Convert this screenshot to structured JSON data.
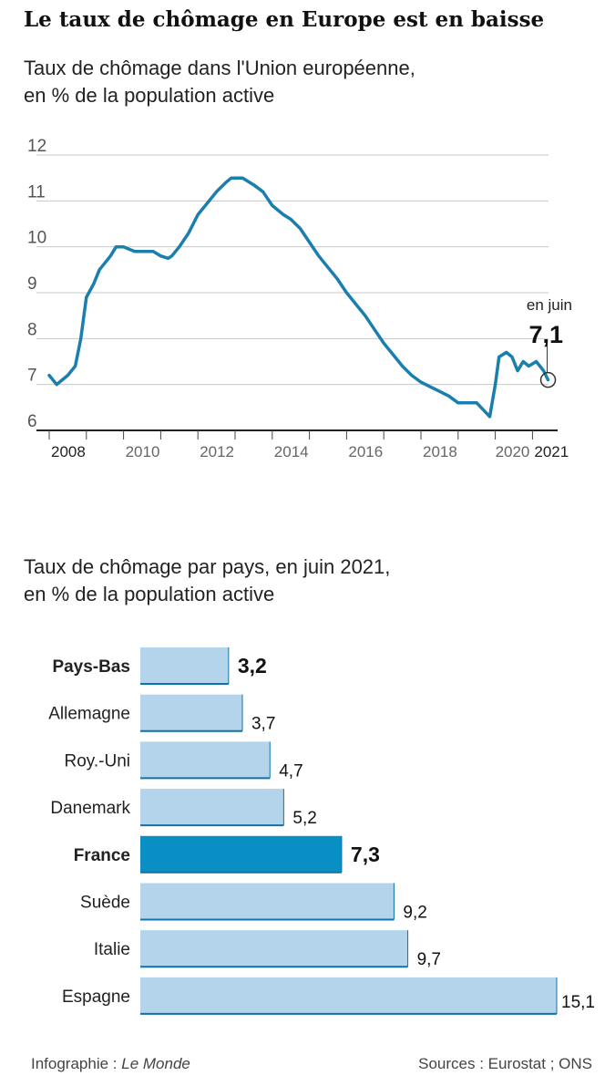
{
  "title": "Le taux de chômage en Europe est en baisse",
  "credit_label": "Infographie : ",
  "credit_name": "Le Monde",
  "sources": "Sources : Eurostat ; ONS",
  "colors": {
    "line": "#1a7fae",
    "bar": "#b3d4ea",
    "bar_highlight": "#0a8fc4",
    "bar_edge": "#0e73a6",
    "grid": "#c7c7c7"
  },
  "chart_data": [
    {
      "type": "line",
      "title": "Taux de chômage dans l'Union européenne,",
      "subtitle": "en % de la population active",
      "xlabel": "",
      "ylabel": "",
      "xlim": [
        2007.95,
        2021.5
      ],
      "ylim": [
        6,
        12
      ],
      "yticks": [
        "6",
        "7",
        "8",
        "9",
        "10",
        "11",
        "12"
      ],
      "xticks": [
        "2008",
        "2010",
        "2012",
        "2014",
        "2016",
        "2018",
        "2020",
        "2021"
      ],
      "annotation": {
        "label": "en juin",
        "value": "7,1",
        "x": 2021.42,
        "y": 7.1
      },
      "x": [
        2008.0,
        2008.2,
        2008.35,
        2008.5,
        2008.7,
        2008.85,
        2009.0,
        2009.2,
        2009.35,
        2009.5,
        2009.65,
        2009.8,
        2010.0,
        2010.3,
        2010.5,
        2010.8,
        2011.0,
        2011.2,
        2011.3,
        2011.5,
        2011.75,
        2012.0,
        2012.2,
        2012.5,
        2012.75,
        2012.9,
        2013.2,
        2013.5,
        2013.75,
        2014.0,
        2014.3,
        2014.5,
        2014.75,
        2015.0,
        2015.25,
        2015.5,
        2015.75,
        2016.0,
        2016.25,
        2016.5,
        2016.75,
        2017.0,
        2017.25,
        2017.5,
        2017.75,
        2018.0,
        2018.25,
        2018.5,
        2018.75,
        2019.0,
        2019.25,
        2019.5,
        2019.85,
        2020.0,
        2020.1,
        2020.3,
        2020.45,
        2020.6,
        2020.75,
        2020.9,
        2021.1,
        2021.2,
        2021.3,
        2021.42
      ],
      "values": [
        7.2,
        7.0,
        7.1,
        7.2,
        7.4,
        8.0,
        8.9,
        9.2,
        9.5,
        9.65,
        9.8,
        10.0,
        10.0,
        9.9,
        9.9,
        9.9,
        9.8,
        9.75,
        9.8,
        10.0,
        10.3,
        10.7,
        10.9,
        11.2,
        11.4,
        11.5,
        11.5,
        11.35,
        11.2,
        10.9,
        10.7,
        10.6,
        10.4,
        10.1,
        9.8,
        9.55,
        9.3,
        9.0,
        8.75,
        8.5,
        8.2,
        7.9,
        7.65,
        7.4,
        7.2,
        7.05,
        6.95,
        6.85,
        6.75,
        6.6,
        6.6,
        6.6,
        6.3,
        7.0,
        7.6,
        7.7,
        7.6,
        7.3,
        7.5,
        7.4,
        7.5,
        7.4,
        7.3,
        7.1
      ]
    },
    {
      "type": "bar",
      "orientation": "horizontal",
      "title": "Taux de chômage par pays, en juin 2021,",
      "subtitle": "en % de la population active",
      "categories": [
        "Pays-Bas",
        "Allemagne",
        "Roy.-Uni",
        "Danemark",
        "France",
        "Suède",
        "Italie",
        "Espagne"
      ],
      "values": [
        3.2,
        3.7,
        4.7,
        5.2,
        7.3,
        9.2,
        9.7,
        15.1
      ],
      "labels": [
        "3,2",
        "3,7",
        "4,7",
        "5,2",
        "7,3",
        "9,2",
        "9,7",
        "15,1"
      ],
      "bold": [
        true,
        false,
        false,
        false,
        true,
        false,
        false,
        false
      ],
      "highlight": [
        false,
        false,
        false,
        false,
        true,
        false,
        false,
        false
      ],
      "xlim": [
        0,
        15.1
      ]
    }
  ]
}
